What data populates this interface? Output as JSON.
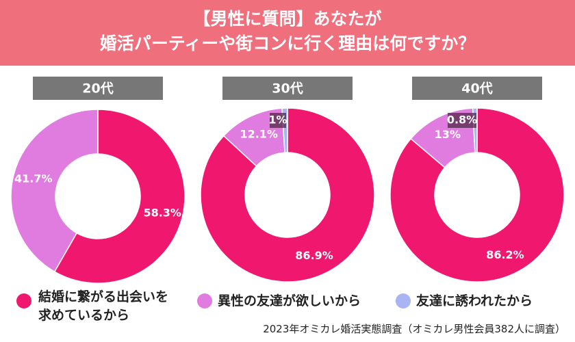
{
  "title": [
    "【男性に質問】あなたが",
    "婚活パーティーや街コンに行く理由は何ですか？"
  ],
  "source": "2023年オミカレ婚活実態調査（オミカレ男性会員382人に調査）",
  "chart_data": [
    {
      "type": "pie",
      "title": "20代",
      "categories": [
        "結婚に繋がる出会いを求めているから",
        "異性の友達が欲しいから"
      ],
      "values": [
        58.3,
        41.7
      ],
      "value_labels": [
        "58.3%",
        "41.7%"
      ],
      "colors": [
        "#f0176f",
        "#e07ce0"
      ]
    },
    {
      "type": "pie",
      "title": "30代",
      "categories": [
        "結婚に繋がる出会いを求めているから",
        "異性の友達が欲しいから",
        "友達に誘われたから"
      ],
      "values": [
        86.9,
        12.1,
        1
      ],
      "value_labels": [
        "86.9%",
        "12.1%",
        "1%"
      ],
      "colors": [
        "#f0176f",
        "#e07ce0",
        "#a8b4f4"
      ]
    },
    {
      "type": "pie",
      "title": "40代",
      "categories": [
        "結婚に繋がる出会いを求めているから",
        "異性の友達が欲しいから",
        "友達に誘われたから"
      ],
      "values": [
        86.2,
        13,
        0.8
      ],
      "value_labels": [
        "86.2%",
        "13%",
        "0.8%"
      ],
      "colors": [
        "#f0176f",
        "#e07ce0",
        "#a8b4f4"
      ]
    }
  ]
}
